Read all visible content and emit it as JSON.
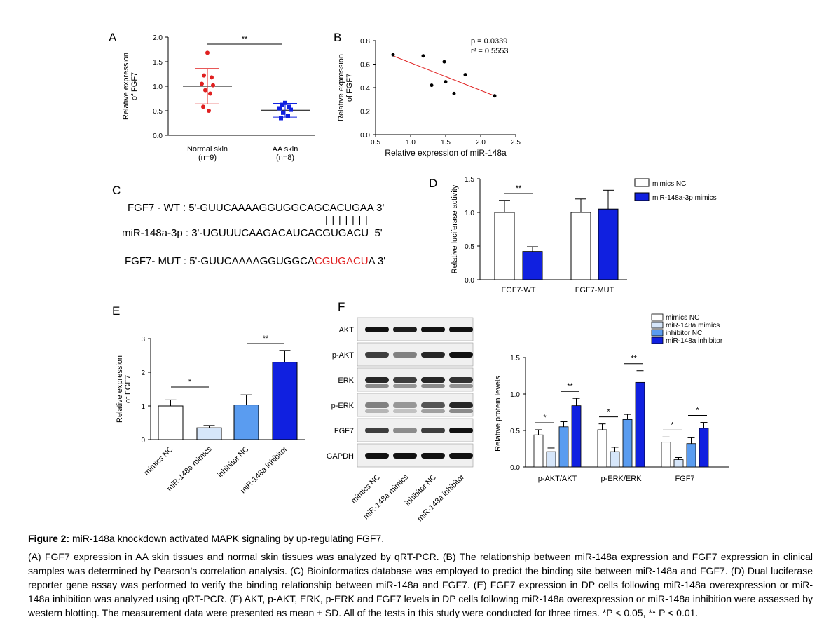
{
  "panel_letters": {
    "a": "A",
    "b": "B",
    "c": "C",
    "d": "D",
    "e": "E",
    "f": "F"
  },
  "colors": {
    "red": "#e02020",
    "blue": "#1020e0",
    "light_blue": "#5a9cf0",
    "pale_blue": "#d6e6fa",
    "white": "#ffffff"
  },
  "panel_c": {
    "wt_label": "FGF7 - WT : 5'-",
    "wt_seq": "GUUCAAAAGGUGGCAGCACUGAA",
    "wt_end": " 3'",
    "pairs": "| | | | | | |",
    "mir_label": "miR-148a-3p : 3'-",
    "mir_seq": "UGUUUCAAGACAUCACGUGACU",
    "mir_end": "  5'",
    "mut_label": "FGF7- MUT : 5'-",
    "mut_seq_black": "GUUCAAAAGGUGGCA",
    "mut_seq_red": "CGUGACU",
    "mut_seq_tail": "A 3'"
  },
  "panel_f_blot": {
    "rows": [
      "AKT",
      "p-AKT",
      "ERK",
      "p-ERK",
      "FGF7",
      "GAPDH"
    ],
    "lanes": [
      "mimics NC",
      "miR-148a mimics",
      "inhibitor NC",
      "miR-148a inhibitor"
    ]
  },
  "caption": {
    "title_bold": "Figure 2:",
    "title_rest": " miR-148a knockdown activated MAPK signaling by up-regulating FGF7.",
    "body": "(A) FGF7 expression in AA skin tissues and normal skin tissues was analyzed by qRT-PCR. (B) The relationship between miR-148a expression and FGF7 expression in clinical samples was determined by Pearson's correlation analysis. (C) Bioinformatics database was employed to predict the binding site between miR-148a and FGF7. (D) Dual luciferase reporter gene assay was performed to verify the binding relationship between miR-148a and FGF7. (E) FGF7 expression in DP cells following miR-148a overexpression or miR-148a inhibition was analyzed using qRT-PCR. (F) AKT, p-AKT, ERK, p-ERK and FGF7 levels in DP cells following miR-148a overexpression or miR-148a inhibition were assessed by western blotting. The measurement data were presented as mean ± SD. All of the tests in this study were conducted for three times. *P < 0.05, ** P < 0.01."
  },
  "chart_data": [
    {
      "id": "A",
      "type": "scatter",
      "ylabel": "Relative expression of FGF7",
      "ylim": [
        0,
        2.0
      ],
      "yticks": [
        "0.0",
        "0.5",
        "1.0",
        "1.5",
        "2.0"
      ],
      "categories": [
        "Normal skin",
        "AA skin"
      ],
      "category_sub": [
        "(n=9)",
        "(n=8)"
      ],
      "series": [
        {
          "name": "Normal skin",
          "values": [
            1.68,
            1.22,
            1.18,
            1.05,
            1.02,
            0.92,
            0.85,
            0.58,
            0.5
          ],
          "mean": 1.0,
          "sd": 0.36
        },
        {
          "name": "AA skin",
          "values": [
            0.66,
            0.62,
            0.58,
            0.55,
            0.52,
            0.46,
            0.4,
            0.35
          ],
          "mean": 0.51,
          "sd": 0.14
        }
      ],
      "significance": "**"
    },
    {
      "id": "B",
      "type": "scatter",
      "xlabel": "Relative expression of miR-148a",
      "ylabel": "Relative expression of FGF7",
      "xlim": [
        0.5,
        2.5
      ],
      "ylim": [
        0,
        0.8
      ],
      "xticks": [
        "0.5",
        "1.0",
        "1.5",
        "2.0",
        "2.5"
      ],
      "yticks": [
        "0.0",
        "0.2",
        "0.4",
        "0.6",
        "0.8"
      ],
      "points": [
        [
          0.75,
          0.68
        ],
        [
          1.18,
          0.67
        ],
        [
          1.48,
          0.62
        ],
        [
          1.78,
          0.51
        ],
        [
          1.5,
          0.45
        ],
        [
          1.3,
          0.42
        ],
        [
          1.62,
          0.35
        ],
        [
          2.2,
          0.33
        ]
      ],
      "fit_line": [
        [
          0.75,
          0.67
        ],
        [
          2.2,
          0.33
        ]
      ],
      "annotations": [
        "p = 0.0339",
        "r² = 0.5553"
      ]
    },
    {
      "id": "D",
      "type": "bar",
      "ylabel": "Relative luciferase activity",
      "ylim": [
        0,
        1.5
      ],
      "yticks": [
        "0.0",
        "0.5",
        "1.0",
        "1.5"
      ],
      "categories": [
        "FGF7-WT",
        "FGF7-MUT"
      ],
      "series": [
        {
          "name": "mimics NC",
          "values": [
            1.0,
            1.0
          ],
          "err": [
            0.18,
            0.2
          ]
        },
        {
          "name": "miR-148a-3p mimics",
          "values": [
            0.42,
            1.05
          ],
          "err": [
            0.07,
            0.28
          ]
        }
      ],
      "significance": [
        "**"
      ]
    },
    {
      "id": "E",
      "type": "bar",
      "ylabel": "Relative expression of FGF7",
      "ylim": [
        0,
        3
      ],
      "yticks": [
        "0",
        "1",
        "2",
        "3"
      ],
      "categories": [
        "mimics NC",
        "miR-148a mimics",
        "inhibitor NC",
        "miR-148a inhibitor"
      ],
      "values": [
        1.0,
        0.35,
        1.03,
        2.3
      ],
      "err": [
        0.18,
        0.07,
        0.3,
        0.35
      ],
      "significance": [
        "*",
        "**"
      ]
    },
    {
      "id": "F",
      "type": "bar",
      "ylabel": "Relative protein levels",
      "ylim": [
        0,
        1.5
      ],
      "yticks": [
        "0.0",
        "0.5",
        "1.0",
        "1.5"
      ],
      "categories": [
        "p-AKT/AKT",
        "p-ERK/ERK",
        "FGF7"
      ],
      "series": [
        {
          "name": "mimics NC",
          "values": [
            0.44,
            0.51,
            0.34
          ],
          "err": [
            0.07,
            0.08,
            0.07
          ]
        },
        {
          "name": "miR-148a mimics",
          "values": [
            0.21,
            0.21,
            0.1
          ],
          "err": [
            0.05,
            0.06,
            0.03
          ]
        },
        {
          "name": "inhibitor NC",
          "values": [
            0.55,
            0.65,
            0.32
          ],
          "err": [
            0.07,
            0.07,
            0.08
          ]
        },
        {
          "name": "miR-148a inhibitor",
          "values": [
            0.84,
            1.16,
            0.53
          ],
          "err": [
            0.1,
            0.16,
            0.08
          ]
        }
      ],
      "significance": [
        "*",
        "**",
        "*",
        "**",
        "*",
        "*"
      ]
    }
  ]
}
